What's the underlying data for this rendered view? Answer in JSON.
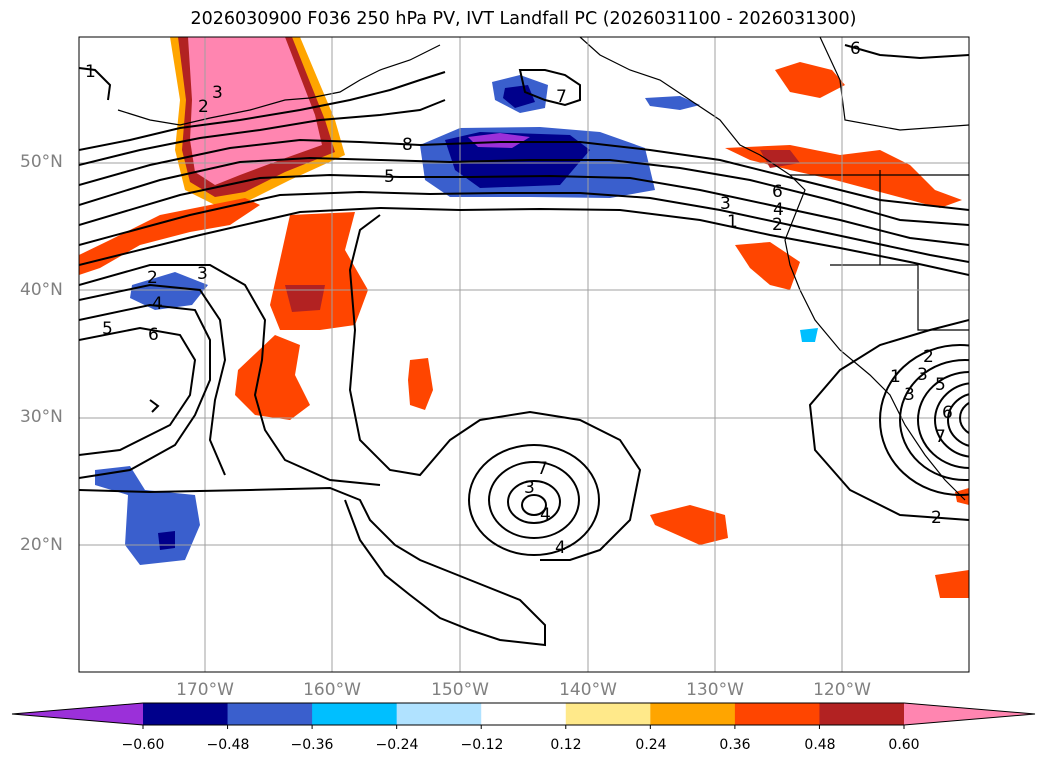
{
  "title": "2026030900 F036 250 hPa PV, IVT Landfall PC (2026031100 - 2026031300)",
  "map": {
    "projection": "PlateCarree",
    "lon_range": [
      -180,
      -110
    ],
    "lat_range": [
      10,
      60
    ],
    "gridlines": true,
    "lat_labels": [
      "50°N",
      "40°N",
      "30°N",
      "20°N"
    ],
    "lon_labels": [
      "170°W",
      "160°W",
      "150°W",
      "140°W",
      "130°W",
      "120°W"
    ],
    "contour_color": "#000000",
    "contour_labels": [
      "1",
      "2",
      "3",
      "6",
      "8",
      "5",
      "7",
      "6",
      "3",
      "4",
      "1",
      "2",
      "2",
      "3",
      "4",
      "5",
      "6",
      "7",
      "3",
      "4",
      "2",
      "1",
      "2",
      "3",
      "4",
      "5",
      "6",
      "7",
      "3"
    ]
  },
  "colorbar": {
    "ticks": [
      "−0.60",
      "−0.48",
      "−0.36",
      "−0.24",
      "−0.12",
      "0.12",
      "0.24",
      "0.36",
      "0.48",
      "0.60"
    ],
    "colors": [
      "#9b30d9",
      "#00008b",
      "#3a5fcd",
      "#00bfff",
      "#b0e2ff",
      "#ffffff",
      "#ffe98a",
      "#ffa500",
      "#ff4500",
      "#b22222",
      "#ff85b0"
    ],
    "extend": "both"
  }
}
